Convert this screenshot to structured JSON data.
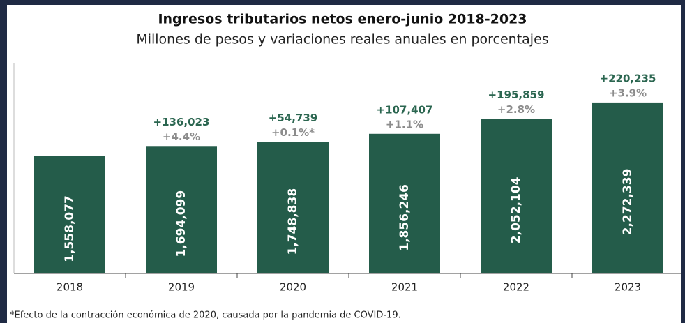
{
  "chart_data": {
    "type": "bar",
    "title": "Ingresos tributarios netos enero-junio 2018-2023",
    "subtitle": "Millones de pesos y variaciones reales anuales en porcentajes",
    "categories": [
      "2018",
      "2019",
      "2020",
      "2021",
      "2022",
      "2023"
    ],
    "values": [
      1558077,
      1694099,
      1748838,
      1856246,
      2052104,
      2272339
    ],
    "value_labels": [
      "1,558,077",
      "1,694,099",
      "1,748,838",
      "1,856,246",
      "2,052,104",
      "2,272,339"
    ],
    "increments": [
      null,
      136023,
      54739,
      107407,
      195859,
      220235
    ],
    "increment_labels": [
      null,
      "+136,023",
      "+54,739",
      "+107,407",
      "+195,859",
      "+220,235"
    ],
    "variations": [
      null,
      4.4,
      0.1,
      1.1,
      2.8,
      3.9
    ],
    "variation_labels": [
      null,
      "+4.4%",
      "+0.1%*",
      "+1.1%",
      "+2.8%",
      "+3.9%"
    ],
    "color": "#245c4a",
    "ylim": [
      0,
      2800000
    ],
    "footnote": "*Efecto de la contracción económica de 2020, causada por la pandemia de COVID-19."
  }
}
